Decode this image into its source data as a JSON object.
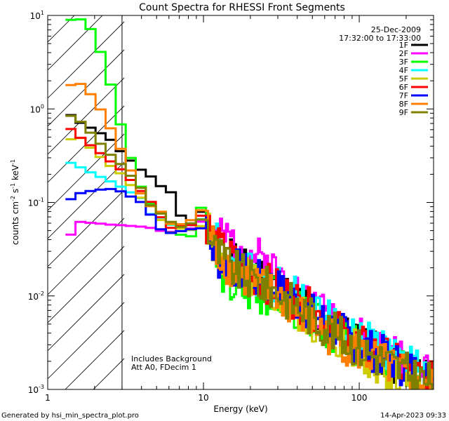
{
  "chart_data": {
    "type": "line",
    "title": "Count Spectra for RHESSI Front Segments",
    "xlabel": "Energy (keV)",
    "ylabel_parts": {
      "a": "counts cm",
      "b": "-2",
      "c": " s",
      "d": "-1",
      "e": " keV",
      "f": "-1"
    },
    "xscale": "log",
    "yscale": "log",
    "xlim": [
      1,
      300
    ],
    "ylim": [
      0.001,
      10
    ],
    "x_ticks": [
      {
        "v": 1,
        "label": "1"
      },
      {
        "v": 10,
        "label": "10"
      },
      {
        "v": 100,
        "label": "100"
      }
    ],
    "y_ticks": [
      {
        "v": 10,
        "base": "10",
        "exp": "1"
      },
      {
        "v": 1,
        "base": "10",
        "exp": "0"
      },
      {
        "v": 0.1,
        "base": "10",
        "exp": "-1"
      },
      {
        "v": 0.01,
        "base": "10",
        "exp": "-2"
      },
      {
        "v": 0.001,
        "base": "10",
        "exp": "-3"
      }
    ],
    "attenuator_boundary_keV": 3,
    "date": "25-Dec-2009",
    "time_range": "17:32:00 to 17:33:00",
    "annotations": [
      "Includes Background",
      "Att A0, FDecim 1"
    ],
    "legend_position": "top-right",
    "series": [
      {
        "name": "1F",
        "color": "#000000",
        "anchors": [
          [
            1.3,
            0.95
          ],
          [
            1.6,
            0.72
          ],
          [
            2,
            0.6
          ],
          [
            2.5,
            0.48
          ],
          [
            3,
            0.34
          ],
          [
            4,
            0.22
          ],
          [
            5,
            0.17
          ],
          [
            6,
            0.13
          ],
          [
            7,
            0.07
          ],
          [
            8,
            0.06
          ],
          [
            10,
            0.075
          ],
          [
            12,
            0.03
          ],
          [
            15,
            0.024
          ],
          [
            20,
            0.017
          ],
          [
            30,
            0.012
          ],
          [
            50,
            0.007
          ],
          [
            70,
            0.0045
          ],
          [
            100,
            0.003
          ],
          [
            150,
            0.0022
          ],
          [
            200,
            0.0017
          ],
          [
            280,
            0.0013
          ]
        ]
      },
      {
        "name": "2F",
        "color": "#ff00ff",
        "anchors": [
          [
            1.3,
            0.038
          ],
          [
            1.6,
            0.062
          ],
          [
            2,
            0.06
          ],
          [
            2.5,
            0.058
          ],
          [
            3,
            0.057
          ],
          [
            4,
            0.055
          ],
          [
            5,
            0.055
          ],
          [
            6,
            0.052
          ],
          [
            8,
            0.055
          ],
          [
            10,
            0.065
          ],
          [
            12,
            0.04
          ],
          [
            15,
            0.04
          ],
          [
            20,
            0.03
          ],
          [
            30,
            0.018
          ],
          [
            50,
            0.008
          ],
          [
            70,
            0.0055
          ],
          [
            100,
            0.0035
          ],
          [
            150,
            0.0025
          ],
          [
            200,
            0.0019
          ],
          [
            280,
            0.0015
          ]
        ]
      },
      {
        "name": "3F",
        "color": "#00ff00",
        "anchors": [
          [
            1.3,
            8.8
          ],
          [
            1.6,
            9.3
          ],
          [
            2,
            6.5
          ],
          [
            2.5,
            2.0
          ],
          [
            3,
            0.6
          ],
          [
            3.5,
            0.26
          ],
          [
            4,
            0.14
          ],
          [
            5,
            0.085
          ],
          [
            6,
            0.05
          ],
          [
            8,
            0.04
          ],
          [
            10,
            0.09
          ],
          [
            12,
            0.025
          ],
          [
            15,
            0.013
          ],
          [
            20,
            0.011
          ],
          [
            30,
            0.01
          ],
          [
            50,
            0.0055
          ],
          [
            70,
            0.004
          ],
          [
            100,
            0.0028
          ],
          [
            150,
            0.002
          ],
          [
            200,
            0.0016
          ],
          [
            280,
            0.0012
          ]
        ]
      },
      {
        "name": "4F",
        "color": "#00ffff",
        "anchors": [
          [
            1.3,
            0.28
          ],
          [
            1.6,
            0.24
          ],
          [
            2,
            0.2
          ],
          [
            2.5,
            0.17
          ],
          [
            3,
            0.145
          ],
          [
            4,
            0.11
          ],
          [
            5,
            0.07
          ],
          [
            6,
            0.057
          ],
          [
            8,
            0.05
          ],
          [
            10,
            0.07
          ],
          [
            12,
            0.04
          ],
          [
            15,
            0.02
          ],
          [
            20,
            0.018
          ],
          [
            30,
            0.014
          ],
          [
            50,
            0.0075
          ],
          [
            70,
            0.005
          ],
          [
            100,
            0.0035
          ],
          [
            150,
            0.0025
          ],
          [
            200,
            0.0019
          ],
          [
            280,
            0.0015
          ]
        ]
      },
      {
        "name": "5F",
        "color": "#cccc00",
        "anchors": [
          [
            1.3,
            0.46
          ],
          [
            1.6,
            0.5
          ],
          [
            2,
            0.35
          ],
          [
            2.5,
            0.25
          ],
          [
            3,
            0.2
          ],
          [
            4,
            0.11
          ],
          [
            5,
            0.07
          ],
          [
            6,
            0.055
          ],
          [
            8,
            0.05
          ],
          [
            10,
            0.065
          ],
          [
            12,
            0.03
          ],
          [
            15,
            0.02
          ],
          [
            20,
            0.015
          ],
          [
            30,
            0.01
          ],
          [
            50,
            0.005
          ],
          [
            70,
            0.0035
          ],
          [
            100,
            0.0025
          ],
          [
            150,
            0.0015
          ],
          [
            200,
            0.0012
          ],
          [
            280,
            0.001
          ]
        ]
      },
      {
        "name": "6F",
        "color": "#ff0000",
        "anchors": [
          [
            1.3,
            0.68
          ],
          [
            1.6,
            0.5
          ],
          [
            2,
            0.38
          ],
          [
            2.5,
            0.28
          ],
          [
            3,
            0.22
          ],
          [
            4,
            0.13
          ],
          [
            5,
            0.08
          ],
          [
            6,
            0.06
          ],
          [
            8,
            0.055
          ],
          [
            10,
            0.075
          ],
          [
            12,
            0.035
          ],
          [
            15,
            0.025
          ],
          [
            20,
            0.017
          ],
          [
            30,
            0.012
          ],
          [
            50,
            0.007
          ],
          [
            70,
            0.0045
          ],
          [
            100,
            0.003
          ],
          [
            150,
            0.0022
          ],
          [
            200,
            0.0016
          ],
          [
            280,
            0.0012
          ]
        ]
      },
      {
        "name": "7F",
        "color": "#0000ff",
        "anchors": [
          [
            1.3,
            0.1
          ],
          [
            1.6,
            0.125
          ],
          [
            2,
            0.135
          ],
          [
            2.5,
            0.14
          ],
          [
            3,
            0.13
          ],
          [
            4,
            0.1
          ],
          [
            5,
            0.06
          ],
          [
            6,
            0.05
          ],
          [
            8,
            0.05
          ],
          [
            10,
            0.06
          ],
          [
            12,
            0.025
          ],
          [
            15,
            0.022
          ],
          [
            20,
            0.016
          ],
          [
            30,
            0.012
          ],
          [
            50,
            0.0065
          ],
          [
            70,
            0.0045
          ],
          [
            100,
            0.003
          ],
          [
            150,
            0.0022
          ],
          [
            200,
            0.0017
          ],
          [
            280,
            0.0013
          ]
        ]
      },
      {
        "name": "8F",
        "color": "#ff8000",
        "anchors": [
          [
            1.3,
            1.75
          ],
          [
            1.6,
            1.9
          ],
          [
            2,
            1.3
          ],
          [
            2.5,
            0.65
          ],
          [
            3,
            0.35
          ],
          [
            3.5,
            0.2
          ],
          [
            4,
            0.12
          ],
          [
            5,
            0.08
          ],
          [
            6,
            0.06
          ],
          [
            8,
            0.06
          ],
          [
            10,
            0.085
          ],
          [
            12,
            0.03
          ],
          [
            15,
            0.02
          ],
          [
            20,
            0.014
          ],
          [
            30,
            0.01
          ],
          [
            50,
            0.005
          ],
          [
            70,
            0.0035
          ],
          [
            100,
            0.0025
          ],
          [
            150,
            0.0018
          ],
          [
            200,
            0.0014
          ],
          [
            280,
            0.0011
          ]
        ]
      },
      {
        "name": "9F",
        "color": "#808000",
        "anchors": [
          [
            1.3,
            0.9
          ],
          [
            1.6,
            0.75
          ],
          [
            2,
            0.5
          ],
          [
            2.5,
            0.33
          ],
          [
            3,
            0.25
          ],
          [
            4,
            0.14
          ],
          [
            5,
            0.08
          ],
          [
            6,
            0.06
          ],
          [
            8,
            0.055
          ],
          [
            10,
            0.075
          ],
          [
            12,
            0.03
          ],
          [
            15,
            0.02
          ],
          [
            20,
            0.015
          ],
          [
            30,
            0.011
          ],
          [
            50,
            0.006
          ],
          [
            70,
            0.004
          ],
          [
            100,
            0.0028
          ],
          [
            150,
            0.002
          ],
          [
            200,
            0.0015
          ],
          [
            280,
            0.0012
          ]
        ]
      }
    ]
  },
  "footer": {
    "generated_by": "Generated by hsi_min_spectra_plot.pro",
    "timestamp": "14-Apr-2023 09:33"
  }
}
